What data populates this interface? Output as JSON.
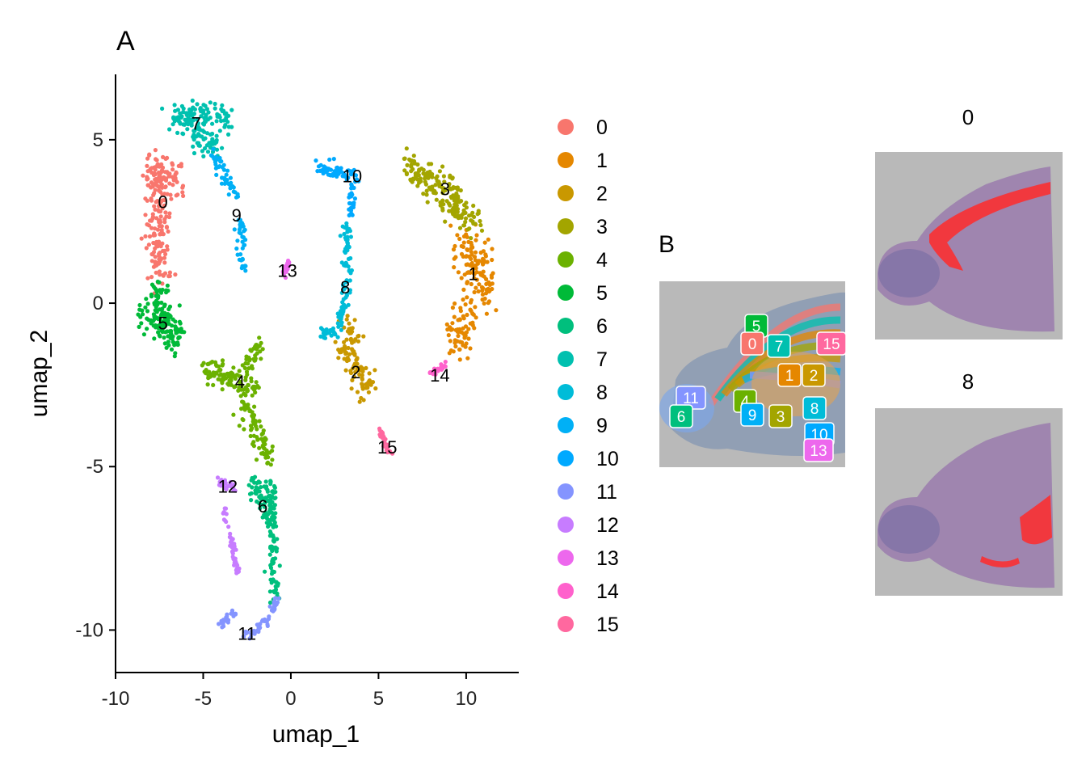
{
  "figure": {
    "panel_a_label": "A",
    "panel_b_label": "B",
    "colors": {
      "0": "#F8766D",
      "1": "#E58700",
      "2": "#C99800",
      "3": "#A3A500",
      "4": "#6BB100",
      "5": "#00BA38",
      "6": "#00BF7D",
      "7": "#00C0AF",
      "8": "#00BCD8",
      "9": "#00B0F6",
      "10": "#619CFF",
      "11": "#B983FF",
      "12": "#E76BF3",
      "13": "#FD61D1",
      "14": "#FF67A4",
      "15": "#FF6C91"
    }
  },
  "chart_data": [
    {
      "type": "scatter",
      "panel": "A",
      "xlabel": "umap_1",
      "ylabel": "umap_2",
      "xlim": [
        -10,
        13
      ],
      "ylim": [
        -11.3,
        7
      ],
      "xticks": [
        -10,
        -5,
        0,
        5,
        10
      ],
      "yticks": [
        -10,
        -5,
        0,
        5
      ],
      "xtick_labels": [
        "-10",
        "-5",
        "0",
        "5",
        "10"
      ],
      "ytick_labels": [
        "-10",
        "-5",
        "0",
        "5"
      ],
      "grid": false,
      "legend_position": "right",
      "legend_entries": [
        "0",
        "1",
        "2",
        "3",
        "4",
        "5",
        "6",
        "7",
        "8",
        "9",
        "10",
        "11",
        "12",
        "13",
        "14",
        "15"
      ],
      "cluster_colors": [
        "#F8766D",
        "#E58700",
        "#C99800",
        "#A3A500",
        "#6BB100",
        "#00BA38",
        "#00BF7D",
        "#00C0AF",
        "#00BCD8",
        "#00B0F6",
        "#00A9FF",
        "#8494FF",
        "#C77CFF",
        "#ED68ED",
        "#FF61CC",
        "#FF689F"
      ],
      "clusters": [
        {
          "id": "0",
          "label_pos": [
            -7.3,
            3.1
          ],
          "segments": [
            [
              -8.3,
              4.2,
              -6.5,
              3.6
            ],
            [
              -7.6,
              3.4,
              -7.4,
              0.9
            ]
          ],
          "spread": 0.65
        },
        {
          "id": "1",
          "label_pos": [
            10.4,
            0.9
          ],
          "segments": [
            [
              9.8,
              2.0,
              11.2,
              0.3
            ],
            [
              10.2,
              -0.2,
              9.4,
              -1.2
            ]
          ],
          "spread": 0.7
        },
        {
          "id": "2",
          "label_pos": [
            3.7,
            -2.1
          ],
          "segments": [
            [
              3.0,
              -1.5,
              4.3,
              -2.6
            ],
            [
              3.2,
              -0.6,
              3.6,
              -1.2
            ]
          ],
          "spread": 0.5
        },
        {
          "id": "3",
          "label_pos": [
            8.8,
            3.5
          ],
          "segments": [
            [
              6.5,
              4.2,
              9.5,
              3.3
            ],
            [
              9.0,
              3.0,
              10.5,
              2.5
            ]
          ],
          "spread": 0.45
        },
        {
          "id": "4",
          "label_pos": [
            -2.9,
            -2.4
          ],
          "segments": [
            [
              -5.0,
              -2.0,
              -2.0,
              -2.6
            ],
            [
              -2.5,
              -2.0,
              -1.7,
              -1.2
            ],
            [
              -2.8,
              -3.0,
              -1.2,
              -4.8
            ]
          ],
          "spread": 0.35
        },
        {
          "id": "5",
          "label_pos": [
            -7.3,
            -0.6
          ],
          "segments": [
            [
              -8.5,
              -0.2,
              -6.3,
              -1.0
            ],
            [
              -7.7,
              0.5,
              -7.0,
              -1.2
            ]
          ],
          "spread": 0.45
        },
        {
          "id": "6",
          "label_pos": [
            -1.6,
            -6.2
          ],
          "segments": [
            [
              -2.2,
              -5.5,
              -1.0,
              -6.8
            ],
            [
              -1.3,
              -5.4,
              -0.9,
              -7.5
            ],
            [
              -1.1,
              -7.5,
              -1.0,
              -9.0
            ]
          ],
          "spread": 0.3
        },
        {
          "id": "7",
          "label_pos": [
            -5.4,
            5.5
          ],
          "segments": [
            [
              -6.8,
              5.6,
              -3.5,
              5.7
            ],
            [
              -5.5,
              5.2,
              -4.2,
              4.8
            ]
          ],
          "spread": 0.4
        },
        {
          "id": "8",
          "label_pos": [
            3.1,
            0.5
          ],
          "segments": [
            [
              3.2,
              2.4,
              3.2,
              0.0
            ],
            [
              3.0,
              0.0,
              2.8,
              -0.7
            ],
            [
              1.7,
              -0.9,
              2.6,
              -0.9
            ]
          ],
          "spread": 0.2
        },
        {
          "id": "9",
          "label_pos": [
            -3.1,
            2.7
          ],
          "segments": [
            [
              -4.5,
              4.6,
              -3.2,
              3.4
            ],
            [
              -2.9,
              2.5,
              -2.7,
              1.2
            ]
          ],
          "spread": 0.25
        },
        {
          "id": "10",
          "label_pos": [
            3.5,
            3.9
          ],
          "segments": [
            [
              1.6,
              4.2,
              3.9,
              3.8
            ],
            [
              3.5,
              3.5,
              3.4,
              2.6
            ]
          ],
          "spread": 0.22
        },
        {
          "id": "11",
          "label_pos": [
            -2.5,
            -10.1
          ],
          "segments": [
            [
              -4.1,
              -9.9,
              -3.2,
              -9.4
            ],
            [
              -2.6,
              -10.3,
              -1.2,
              -9.6
            ],
            [
              -1.0,
              -9.4,
              -0.8,
              -9.0
            ]
          ],
          "spread": 0.15
        },
        {
          "id": "12",
          "label_pos": [
            -3.6,
            -5.6
          ],
          "segments": [
            [
              -4.2,
              -5.5,
              -3.3,
              -5.6
            ],
            [
              -3.8,
              -6.3,
              -3.3,
              -7.5
            ],
            [
              -3.3,
              -7.5,
              -3.0,
              -8.4
            ]
          ],
          "spread": 0.15
        },
        {
          "id": "13",
          "label_pos": [
            -0.2,
            1.0
          ],
          "segments": [
            [
              -0.4,
              0.8,
              -0.1,
              1.3
            ]
          ],
          "spread": 0.1
        },
        {
          "id": "14",
          "label_pos": [
            8.5,
            -2.2
          ],
          "segments": [
            [
              7.9,
              -2.2,
              8.9,
              -1.9
            ]
          ],
          "spread": 0.1
        },
        {
          "id": "15",
          "label_pos": [
            5.5,
            -4.4
          ],
          "segments": [
            [
              5.0,
              -3.8,
              5.6,
              -4.6
            ]
          ],
          "spread": 0.12
        }
      ]
    }
  ],
  "panel_b": {
    "badges": [
      {
        "text": "5",
        "color": "#00BA38"
      },
      {
        "text": "0",
        "color": "#F8766D"
      },
      {
        "text": "7",
        "color": "#00C0AF"
      },
      {
        "text": "15",
        "color": "#FF689F"
      },
      {
        "text": "1",
        "color": "#E58700"
      },
      {
        "text": "2",
        "color": "#C99800"
      },
      {
        "text": "11",
        "color": "#8494FF"
      },
      {
        "text": "4",
        "color": "#6BB100"
      },
      {
        "text": "9",
        "color": "#00B0F6"
      },
      {
        "text": "3",
        "color": "#A3A500"
      },
      {
        "text": "8",
        "color": "#00BCD8"
      },
      {
        "text": "6",
        "color": "#00BF7D"
      },
      {
        "text": "10",
        "color": "#00A9FF"
      },
      {
        "text": "13",
        "color": "#ED68ED"
      }
    ]
  },
  "tissue_panels": [
    {
      "title": "0",
      "highlight": "#ff2a2a"
    },
    {
      "title": "8",
      "highlight": "#ff2a2a"
    }
  ]
}
